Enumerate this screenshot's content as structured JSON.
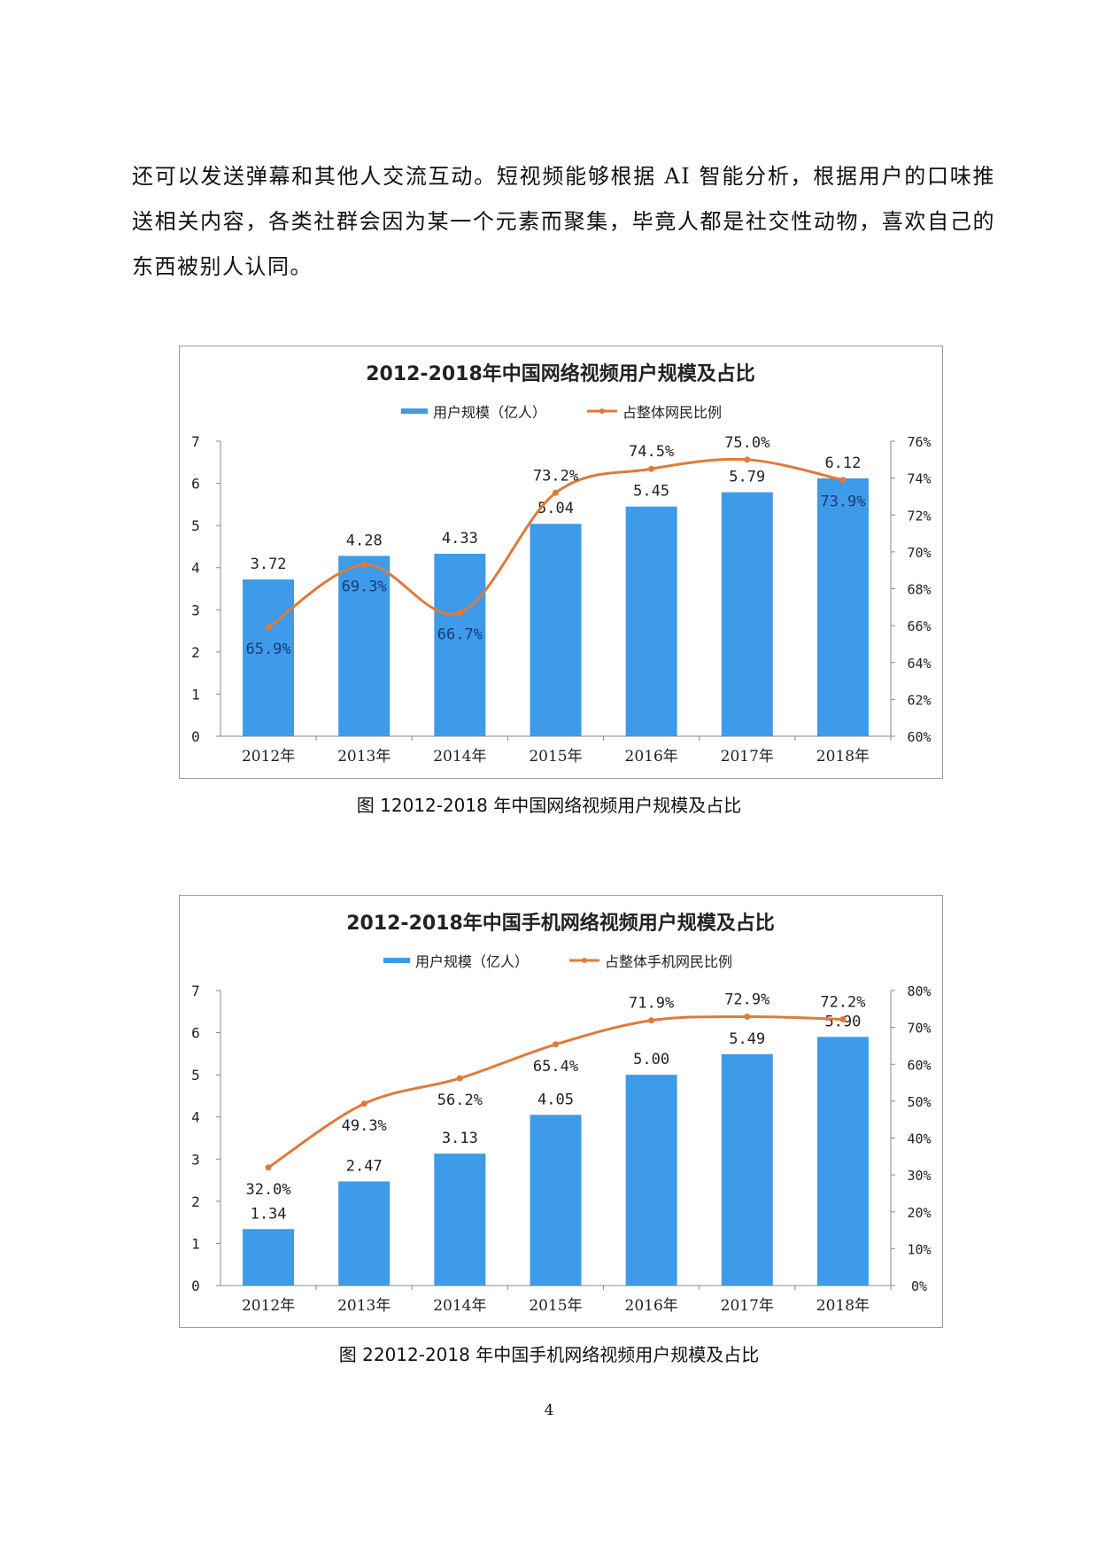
{
  "paragraph": "还可以发送弹幕和其他人交流互动。短视频能够根据 AI 智能分析，根据用户的口味推送相关内容，各类社群会因为某一个元素而聚集，毕竟人都是社交性动物，喜欢自己的东西被别人认同。",
  "captions": [
    "图  12012-2018 年中国网络视频用户规模及占比",
    "图  22012-2018 年中国手机网络视频用户规模及占比"
  ],
  "page_number": "4",
  "colors": {
    "bar": "#3d9be9",
    "line": "#e07a3a",
    "label_in_bar": "#1a3a7a"
  },
  "chart_data": [
    {
      "type": "bar+line",
      "title": "2012-2018年中国网络视频用户规模及占比",
      "categories": [
        "2012年",
        "2013年",
        "2014年",
        "2015年",
        "2016年",
        "2017年",
        "2018年"
      ],
      "series": [
        {
          "name": "用户规模（亿人）",
          "type": "bar",
          "axis": "left",
          "values": [
            3.72,
            4.28,
            4.33,
            5.04,
            5.45,
            5.79,
            6.12
          ],
          "labels": [
            "3.72",
            "4.28",
            "4.33",
            "5.04",
            "5.45",
            "5.79",
            "6.12"
          ]
        },
        {
          "name": "占整体网民比例",
          "type": "line",
          "axis": "right",
          "values": [
            65.9,
            69.3,
            66.7,
            73.2,
            74.5,
            75.0,
            73.9
          ],
          "labels": [
            "65.9%",
            "69.3%",
            "66.7%",
            "73.2%",
            "74.5%",
            "75.0%",
            "73.9%"
          ]
        }
      ],
      "y_left": {
        "range": [
          0,
          7
        ],
        "ticks": [
          "0",
          "1",
          "2",
          "3",
          "4",
          "5",
          "6",
          "7"
        ]
      },
      "y_right": {
        "range": [
          60,
          76
        ],
        "ticks": [
          "60%",
          "62%",
          "64%",
          "66%",
          "68%",
          "70%",
          "72%",
          "74%",
          "76%"
        ]
      },
      "legend_position": "top",
      "grid": false
    },
    {
      "type": "bar+line",
      "title": "2012-2018年中国手机网络视频用户规模及占比",
      "categories": [
        "2012年",
        "2013年",
        "2014年",
        "2015年",
        "2016年",
        "2017年",
        "2018年"
      ],
      "series": [
        {
          "name": "用户规模（亿人）",
          "type": "bar",
          "axis": "left",
          "values": [
            1.34,
            2.47,
            3.13,
            4.05,
            5.0,
            5.49,
            5.9
          ],
          "labels": [
            "1.34",
            "2.47",
            "3.13",
            "4.05",
            "5.00",
            "5.49",
            "5.90"
          ]
        },
        {
          "name": "占整体手机网民比例",
          "type": "line",
          "axis": "right",
          "values": [
            32.0,
            49.3,
            56.2,
            65.4,
            71.9,
            72.9,
            72.2
          ],
          "labels": [
            "32.0%",
            "49.3%",
            "56.2%",
            "65.4%",
            "71.9%",
            "72.9%",
            "72.2%"
          ]
        }
      ],
      "y_left": {
        "range": [
          0,
          7
        ],
        "ticks": [
          "0",
          "1",
          "2",
          "3",
          "4",
          "5",
          "6",
          "7"
        ]
      },
      "y_right": {
        "range": [
          0,
          80
        ],
        "ticks": [
          "0%",
          "10%",
          "20%",
          "30%",
          "40%",
          "50%",
          "60%",
          "70%",
          "80%"
        ]
      },
      "legend_position": "top",
      "grid": false
    }
  ]
}
